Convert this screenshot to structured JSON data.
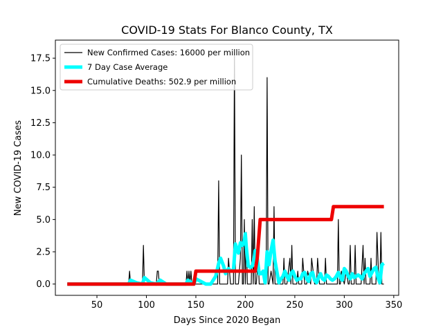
{
  "chart_data": {
    "type": "line",
    "title": "COVID-19 Stats For Blanco County, TX",
    "xlabel": "Days Since 2020 Began",
    "ylabel": "New COVID-19 Cases",
    "xlim": [
      8,
      355
    ],
    "ylim": [
      -0.875,
      18.9
    ],
    "xticks": [
      50,
      100,
      150,
      200,
      250,
      300,
      350
    ],
    "xtick_labels": [
      "50",
      "100",
      "150",
      "200",
      "250",
      "300",
      "350"
    ],
    "yticks": [
      0.0,
      2.5,
      5.0,
      7.5,
      10.0,
      12.5,
      15.0,
      17.5
    ],
    "ytick_labels": [
      "0.0",
      "2.5",
      "5.0",
      "7.5",
      "10.0",
      "12.5",
      "15.0",
      "17.5"
    ],
    "grid": false,
    "legend_position": "top-left",
    "series": [
      {
        "name": "New Confirmed Cases: 16000 per million",
        "color": "#000000",
        "x": [
          20,
          82,
          83,
          84,
          96,
          97,
          98,
          110,
          111,
          112,
          113,
          140,
          141,
          142,
          143,
          144,
          145,
          146,
          150,
          165,
          172,
          173,
          174,
          177,
          182,
          183,
          185,
          188,
          189,
          190,
          193,
          195,
          196,
          197,
          198,
          199,
          200,
          201,
          202,
          203,
          206,
          207,
          208,
          209,
          210,
          211,
          213,
          214,
          215,
          216,
          220,
          221,
          222,
          223,
          224,
          226,
          228,
          229,
          230,
          232,
          238,
          239,
          240,
          242,
          245,
          246,
          247,
          248,
          252,
          253,
          254,
          257,
          258,
          260,
          262,
          263,
          266,
          267,
          270,
          272,
          273,
          275,
          277,
          280,
          281,
          282,
          285,
          286,
          288,
          290,
          292,
          293,
          294,
          295,
          296,
          297,
          300,
          302,
          304,
          305,
          306,
          307,
          308,
          310,
          311,
          312,
          313,
          315,
          317,
          319,
          320,
          321,
          322,
          323,
          326,
          327,
          328,
          330,
          332,
          333,
          335,
          336,
          337,
          338,
          339,
          340
        ],
        "values": [
          0,
          0,
          1,
          0,
          0,
          3,
          0,
          0,
          1,
          1,
          0,
          0,
          1,
          0,
          1,
          0,
          1,
          0,
          0,
          0,
          0,
          8,
          0,
          0,
          0,
          2,
          0,
          0,
          18,
          0,
          0,
          2,
          10,
          0,
          0,
          5,
          0,
          4,
          0,
          0,
          0,
          5,
          0,
          6,
          0,
          0,
          2,
          0,
          0,
          0,
          0,
          0,
          16,
          0,
          0,
          1,
          0,
          6,
          0,
          0,
          0,
          2,
          0,
          0,
          2,
          0,
          3,
          0,
          0,
          1,
          0,
          0,
          2,
          0,
          0,
          1,
          0,
          2,
          0,
          0,
          2,
          0,
          0,
          0,
          2,
          0,
          0,
          0,
          0,
          0,
          0,
          0,
          5,
          0,
          0,
          1,
          0,
          1,
          0,
          0,
          3,
          0,
          0,
          0,
          3,
          0,
          0,
          0,
          0,
          3,
          0,
          2,
          0,
          0,
          0,
          2,
          0,
          0,
          0,
          4,
          0,
          0,
          4,
          0,
          0,
          0
        ]
      },
      {
        "name": "7 Day Case Average",
        "color": "#00ffff",
        "x": [
          20,
          82,
          84,
          90,
          96,
          98,
          104,
          110,
          114,
          120,
          140,
          142,
          148,
          150,
          155,
          160,
          165,
          170,
          173,
          175,
          178,
          180,
          183,
          185,
          188,
          190,
          193,
          195,
          197,
          199,
          200,
          201,
          203,
          205,
          207,
          209,
          210,
          212,
          214,
          216,
          218,
          220,
          222,
          224,
          226,
          228,
          230,
          232,
          234,
          236,
          238,
          240,
          242,
          244,
          246,
          248,
          250,
          252,
          254,
          256,
          258,
          260,
          262,
          264,
          266,
          268,
          270,
          272,
          274,
          276,
          278,
          280,
          282,
          284,
          286,
          288,
          290,
          292,
          294,
          296,
          298,
          300,
          302,
          304,
          306,
          308,
          310,
          312,
          314,
          316,
          318,
          320,
          322,
          324,
          326,
          328,
          330,
          332,
          334,
          336,
          338,
          340
        ],
        "values": [
          0,
          0,
          0.3,
          0.1,
          0,
          0.5,
          0.1,
          0,
          0.3,
          0,
          0,
          0.3,
          0,
          0.4,
          0.2,
          0,
          0,
          0.6,
          1.6,
          2.0,
          1.4,
          0.8,
          1.2,
          1.0,
          1.1,
          3.1,
          2.4,
          3.2,
          3.0,
          3.4,
          3.9,
          2.8,
          1.4,
          1.3,
          1.4,
          2.0,
          2.6,
          2.0,
          0.8,
          0.8,
          1.0,
          0.1,
          2.5,
          1.5,
          2.6,
          3.4,
          1.8,
          0.9,
          0.1,
          0.4,
          0.6,
          1.0,
          0.6,
          0.3,
          0.8,
          1.0,
          0.6,
          0.3,
          0.4,
          0.4,
          0.8,
          0.9,
          0.4,
          0.2,
          0.8,
          0.9,
          0.3,
          0.1,
          0.5,
          0.8,
          0.4,
          0.3,
          0.7,
          0.6,
          0.4,
          0.3,
          0.4,
          0.6,
          0.9,
          0.5,
          0.3,
          1.2,
          1.0,
          0.6,
          0.4,
          0.8,
          0.5,
          0.6,
          0.7,
          0.6,
          0.4,
          0.8,
          1.0,
          1.2,
          0.6,
          0.9,
          1.2,
          1.3,
          0.5,
          0.1,
          1.5,
          1.6
        ]
      },
      {
        "name": "Cumulative Deaths: 502.9 per million",
        "color": "#ee0000",
        "x": [
          20,
          148,
          150,
          210,
          212,
          214,
          215,
          287,
          289,
          340
        ],
        "values": [
          0,
          0,
          1.0,
          1.0,
          2.0,
          4.0,
          5.0,
          5.0,
          6.0,
          6.0
        ]
      }
    ]
  }
}
